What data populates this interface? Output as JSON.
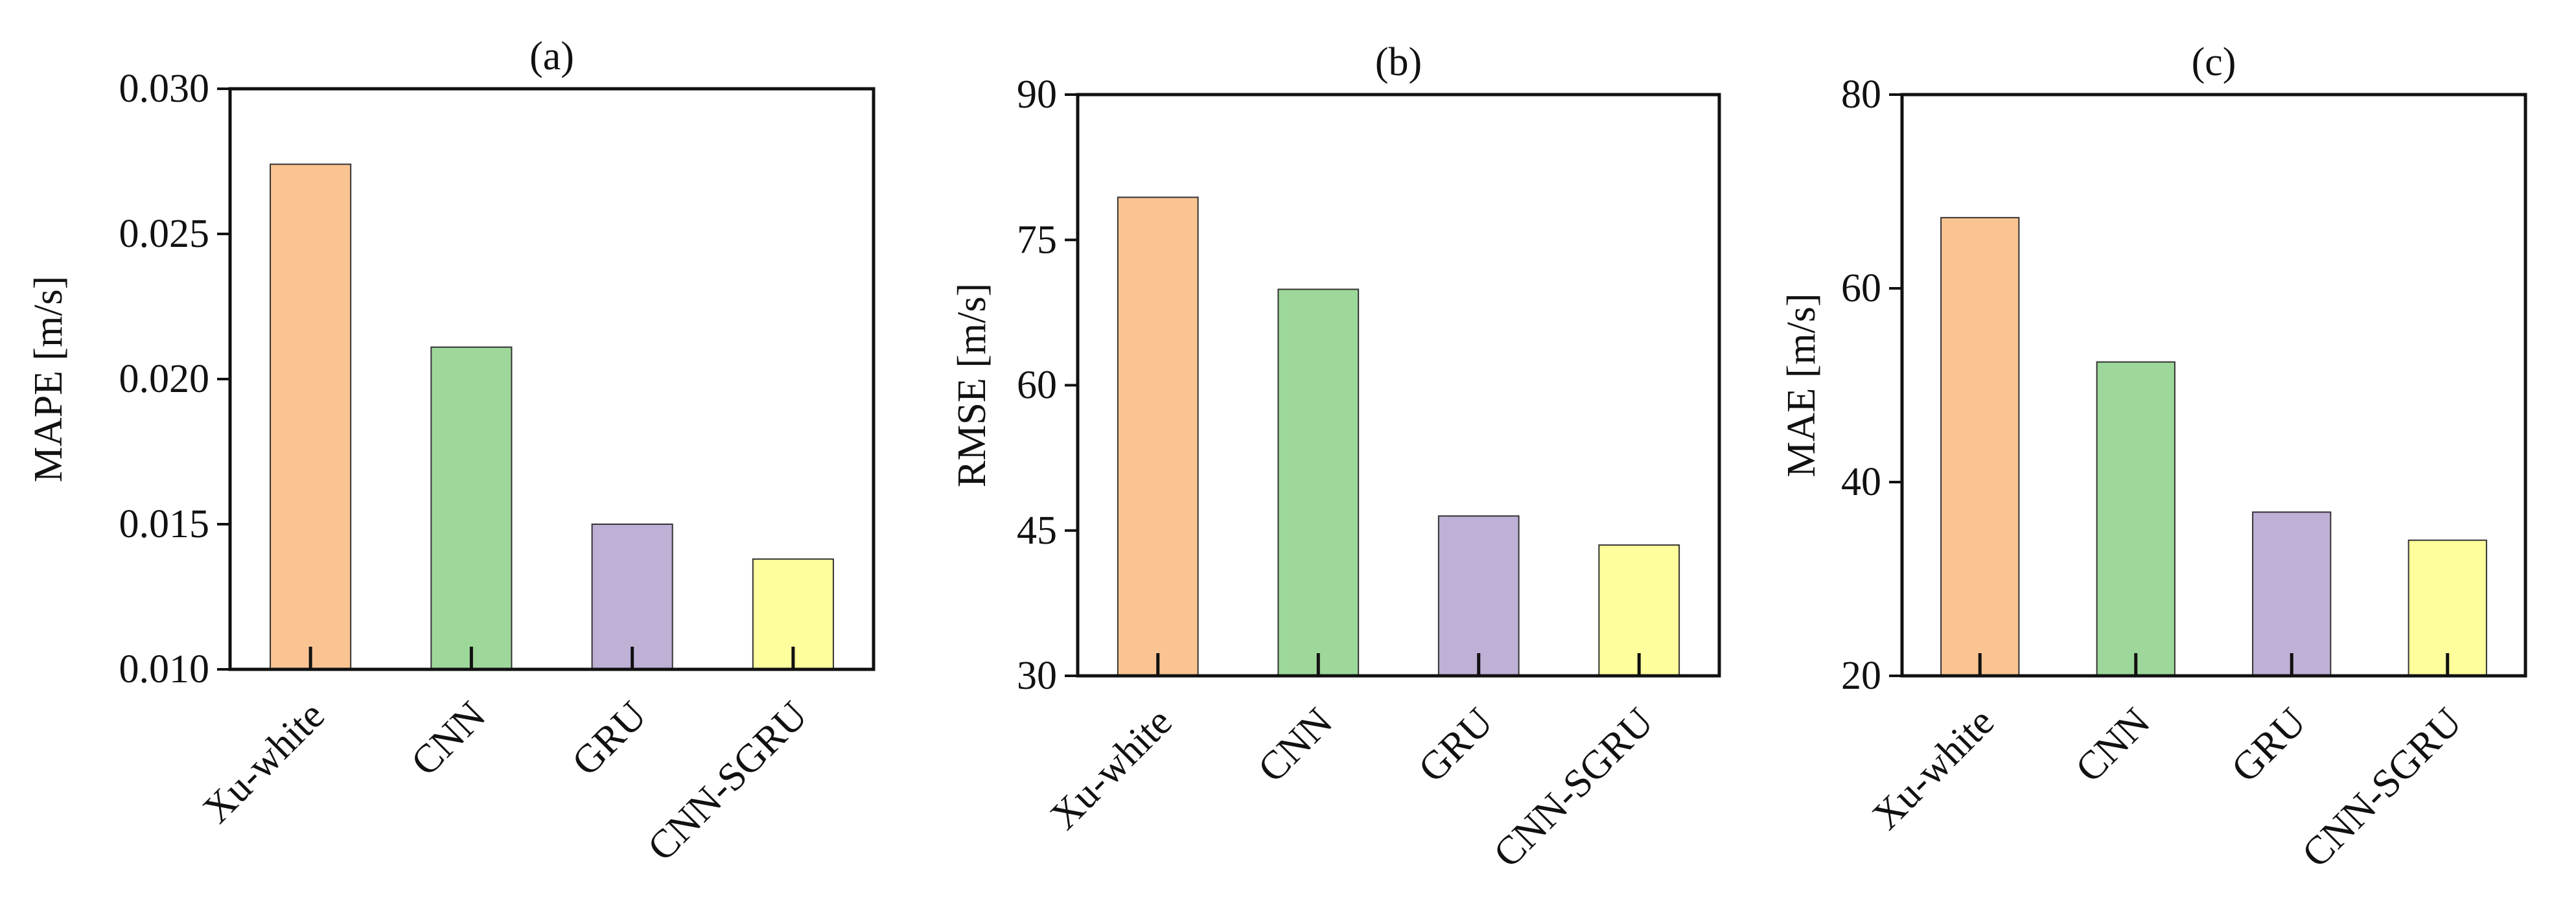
{
  "chart_data": [
    {
      "type": "bar",
      "title": "(a)",
      "ylabel": "MAPE [m/s]",
      "categories": [
        "Xu-white",
        "CNN",
        "GRU",
        "CNN-SGRU"
      ],
      "values": [
        0.0274,
        0.0211,
        0.015,
        0.0138
      ],
      "ylim": [
        0.01,
        0.03
      ],
      "yticks": [
        "0.010",
        "0.015",
        "0.020",
        "0.025",
        "0.030"
      ],
      "grid": false
    },
    {
      "type": "bar",
      "title": "(b)",
      "ylabel": "RMSE [m/s]",
      "categories": [
        "Xu-white",
        "CNN",
        "GRU",
        "CNN-SGRU"
      ],
      "values": [
        79.4,
        69.9,
        46.5,
        43.5
      ],
      "ylim": [
        30,
        90
      ],
      "yticks": [
        "30",
        "45",
        "60",
        "75",
        "90"
      ],
      "grid": false
    },
    {
      "type": "bar",
      "title": "(c)",
      "ylabel": "MAE [m/s]",
      "categories": [
        "Xu-white",
        "CNN",
        "GRU",
        "CNN-SGRU"
      ],
      "values": [
        67.3,
        52.4,
        36.9,
        34.0
      ],
      "ylim": [
        20,
        80
      ],
      "yticks": [
        "20",
        "40",
        "60",
        "80"
      ],
      "grid": false
    }
  ],
  "colors": {
    "Xu-white": "#fac492",
    "CNN": "#9dd89a",
    "GRU": "#bfb0d6",
    "CNN-SGRU": "#fefe9c"
  }
}
